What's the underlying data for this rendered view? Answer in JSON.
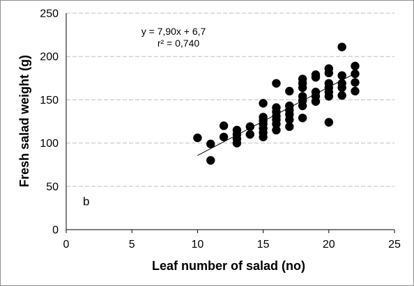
{
  "chart_data": {
    "type": "scatter",
    "xlabel": "Leaf number of salad (no)",
    "ylabel": "Fresh salad weight (g)",
    "xlim": [
      0,
      25
    ],
    "ylim": [
      0,
      250
    ],
    "xticks": [
      "0",
      "5",
      "10",
      "15",
      "20",
      "25"
    ],
    "yticks": [
      "0",
      "50",
      "100",
      "150",
      "200",
      "250"
    ],
    "grid": "horizontal dashed",
    "legend": "none",
    "panel_label": "b",
    "equation": "y = 7,90x  + 6,7",
    "r_squared": "r² = 0,740",
    "trendline": {
      "slope": 7.9,
      "intercept": 6.7,
      "x_range": [
        10,
        22
      ]
    },
    "points": [
      [
        10,
        106
      ],
      [
        11,
        99
      ],
      [
        11,
        80
      ],
      [
        12,
        120
      ],
      [
        12,
        107
      ],
      [
        13,
        115
      ],
      [
        13,
        110
      ],
      [
        13,
        105
      ],
      [
        13,
        100
      ],
      [
        14,
        119
      ],
      [
        14,
        110
      ],
      [
        15,
        146
      ],
      [
        15,
        130
      ],
      [
        15,
        126
      ],
      [
        15,
        122
      ],
      [
        15,
        117
      ],
      [
        15,
        112
      ],
      [
        15,
        107
      ],
      [
        16,
        169
      ],
      [
        16,
        141
      ],
      [
        16,
        136
      ],
      [
        16,
        131
      ],
      [
        16,
        127
      ],
      [
        16,
        122
      ],
      [
        16,
        115
      ],
      [
        17,
        160
      ],
      [
        17,
        143
      ],
      [
        17,
        138
      ],
      [
        17,
        133
      ],
      [
        17,
        127
      ],
      [
        17,
        119
      ],
      [
        18,
        174
      ],
      [
        18,
        169
      ],
      [
        18,
        164
      ],
      [
        18,
        154
      ],
      [
        18,
        149
      ],
      [
        18,
        143
      ],
      [
        18,
        129
      ],
      [
        19,
        179
      ],
      [
        19,
        176
      ],
      [
        19,
        159
      ],
      [
        19,
        154
      ],
      [
        19,
        148
      ],
      [
        20,
        186
      ],
      [
        20,
        181
      ],
      [
        20,
        169
      ],
      [
        20,
        164
      ],
      [
        20,
        159
      ],
      [
        20,
        154
      ],
      [
        20,
        124
      ],
      [
        21,
        211
      ],
      [
        21,
        178
      ],
      [
        21,
        169
      ],
      [
        21,
        164
      ],
      [
        21,
        155
      ],
      [
        22,
        189
      ],
      [
        22,
        180
      ],
      [
        22,
        170
      ],
      [
        22,
        160
      ]
    ],
    "marker_color": "#000000",
    "gridline_color": "#bfbfbf"
  }
}
